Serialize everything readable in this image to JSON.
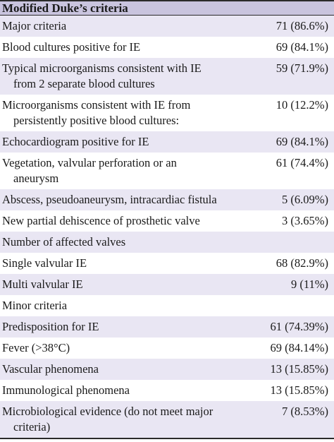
{
  "header": {
    "title": "Modified Duke’s criteria"
  },
  "rows": [
    {
      "label": "Major criteria",
      "label_cont": "",
      "value": "71 (86.6%)"
    },
    {
      "label": "Blood cultures positive for IE",
      "label_cont": "",
      "value": "69 (84.1%)"
    },
    {
      "label": "Typical microorganisms consistent with IE",
      "label_cont": "from 2 separate blood cultures",
      "value": "59 (71.9%)"
    },
    {
      "label": "Microorganisms consistent with IE from",
      "label_cont": "persistently positive blood cultures:",
      "value": "10 (12.2%)"
    },
    {
      "label": "Echocardiogram positive for IE",
      "label_cont": "",
      "value": "69 (84.1%)"
    },
    {
      "label": "Vegetation, valvular perforation or an",
      "label_cont": "aneurysm",
      "value": "61 (74.4%)"
    },
    {
      "label": "Abscess, pseudoaneurysm, intracardiac fistula",
      "label_cont": "",
      "value": "5 (6.09%)"
    },
    {
      "label": "New partial dehiscence of prosthetic valve",
      "label_cont": "",
      "value": "3 (3.65%)"
    },
    {
      "label": "Number of affected valves",
      "label_cont": "",
      "value": ""
    },
    {
      "label": "Single valvular IE",
      "label_cont": "",
      "value": "68 (82.9%)"
    },
    {
      "label": "Multi valvular IE",
      "label_cont": "",
      "value": "9 (11%)"
    },
    {
      "label": "Minor criteria",
      "label_cont": "",
      "value": ""
    },
    {
      "label": "Predisposition for IE",
      "label_cont": "",
      "value": "61 (74.39%)"
    },
    {
      "label": "Fever (>38°C)",
      "label_cont": "",
      "value": "69 (84.14%)"
    },
    {
      "label": "Vascular phenomena",
      "label_cont": "",
      "value": "13 (15.85%)"
    },
    {
      "label": "Immunological phenomena",
      "label_cont": "",
      "value": "13 (15.85%)"
    },
    {
      "label": "Microbiological evidence (do not meet major",
      "label_cont": "criteria)",
      "value": "7 (8.53%)"
    }
  ],
  "colors": {
    "header_bg": "#c9c4de",
    "shade_bg": "#e9e6f3",
    "plain_bg": "#ffffff",
    "rule": "#2a2a2a"
  }
}
